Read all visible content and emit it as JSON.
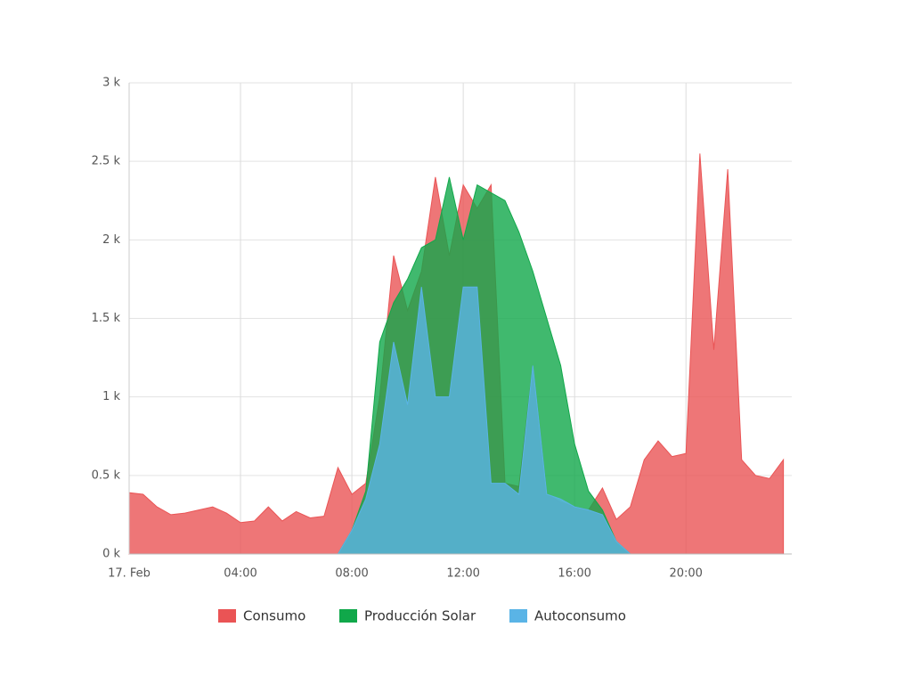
{
  "chart_data": {
    "type": "area",
    "x": [
      0,
      0.5,
      1,
      1.5,
      2,
      2.5,
      3,
      3.5,
      4,
      4.5,
      5,
      5.5,
      6,
      6.5,
      7,
      7.5,
      8,
      8.5,
      9,
      9.5,
      10,
      10.5,
      11,
      11.5,
      12,
      12.5,
      13,
      13.5,
      14,
      14.5,
      15,
      15.5,
      16,
      16.5,
      17,
      17.5,
      18,
      18.5,
      19,
      19.5,
      20,
      20.5,
      21,
      21.5,
      22,
      22.5,
      23,
      23.5
    ],
    "series": [
      {
        "name": "Consumo",
        "color": "#ea5455",
        "values": [
          390,
          380,
          300,
          250,
          260,
          280,
          300,
          260,
          200,
          210,
          300,
          210,
          270,
          230,
          240,
          550,
          380,
          450,
          1000,
          1900,
          1550,
          1800,
          2400,
          1900,
          2350,
          2200,
          2350,
          450,
          430,
          1200,
          380,
          330,
          300,
          280,
          420,
          220,
          300,
          600,
          720,
          620,
          640,
          2550,
          1300,
          2450,
          600,
          500,
          480,
          600
        ]
      },
      {
        "name": "Producción Solar",
        "color": "#10a84a",
        "values": [
          0,
          0,
          0,
          0,
          0,
          0,
          0,
          0,
          0,
          0,
          0,
          0,
          0,
          0,
          0,
          0,
          150,
          400,
          1350,
          1600,
          1750,
          1950,
          2000,
          2400,
          2000,
          2350,
          2300,
          2250,
          2050,
          1800,
          1500,
          1200,
          700,
          400,
          280,
          80,
          0,
          0,
          0,
          0,
          0,
          0,
          0,
          0,
          0,
          0,
          0,
          0
        ]
      },
      {
        "name": "Autoconsumo",
        "color": "#5ab4e6",
        "values": [
          0,
          0,
          0,
          0,
          0,
          0,
          0,
          0,
          0,
          0,
          0,
          0,
          0,
          0,
          0,
          0,
          150,
          350,
          700,
          1350,
          950,
          1700,
          1000,
          1000,
          1700,
          1700,
          450,
          450,
          380,
          1200,
          380,
          350,
          300,
          280,
          250,
          80,
          0,
          0,
          0,
          0,
          0,
          0,
          0,
          0,
          0,
          0,
          0,
          0
        ]
      }
    ],
    "xlim": [
      0,
      23.8
    ],
    "xticks": [
      {
        "value": 0,
        "label": "17. Feb"
      },
      {
        "value": 4,
        "label": "04:00"
      },
      {
        "value": 8,
        "label": "08:00"
      },
      {
        "value": 12,
        "label": "12:00"
      },
      {
        "value": 16,
        "label": "16:00"
      },
      {
        "value": 20,
        "label": "20:00"
      }
    ],
    "ylim": [
      0,
      3000
    ],
    "yticks": [
      {
        "value": 0,
        "label": "0 k"
      },
      {
        "value": 500,
        "label": "0.5 k"
      },
      {
        "value": 1000,
        "label": "1 k"
      },
      {
        "value": 1500,
        "label": "1.5 k"
      },
      {
        "value": 2000,
        "label": "2 k"
      },
      {
        "value": 2500,
        "label": "2.5 k"
      },
      {
        "value": 3000,
        "label": "3 k"
      }
    ],
    "grid": true
  }
}
